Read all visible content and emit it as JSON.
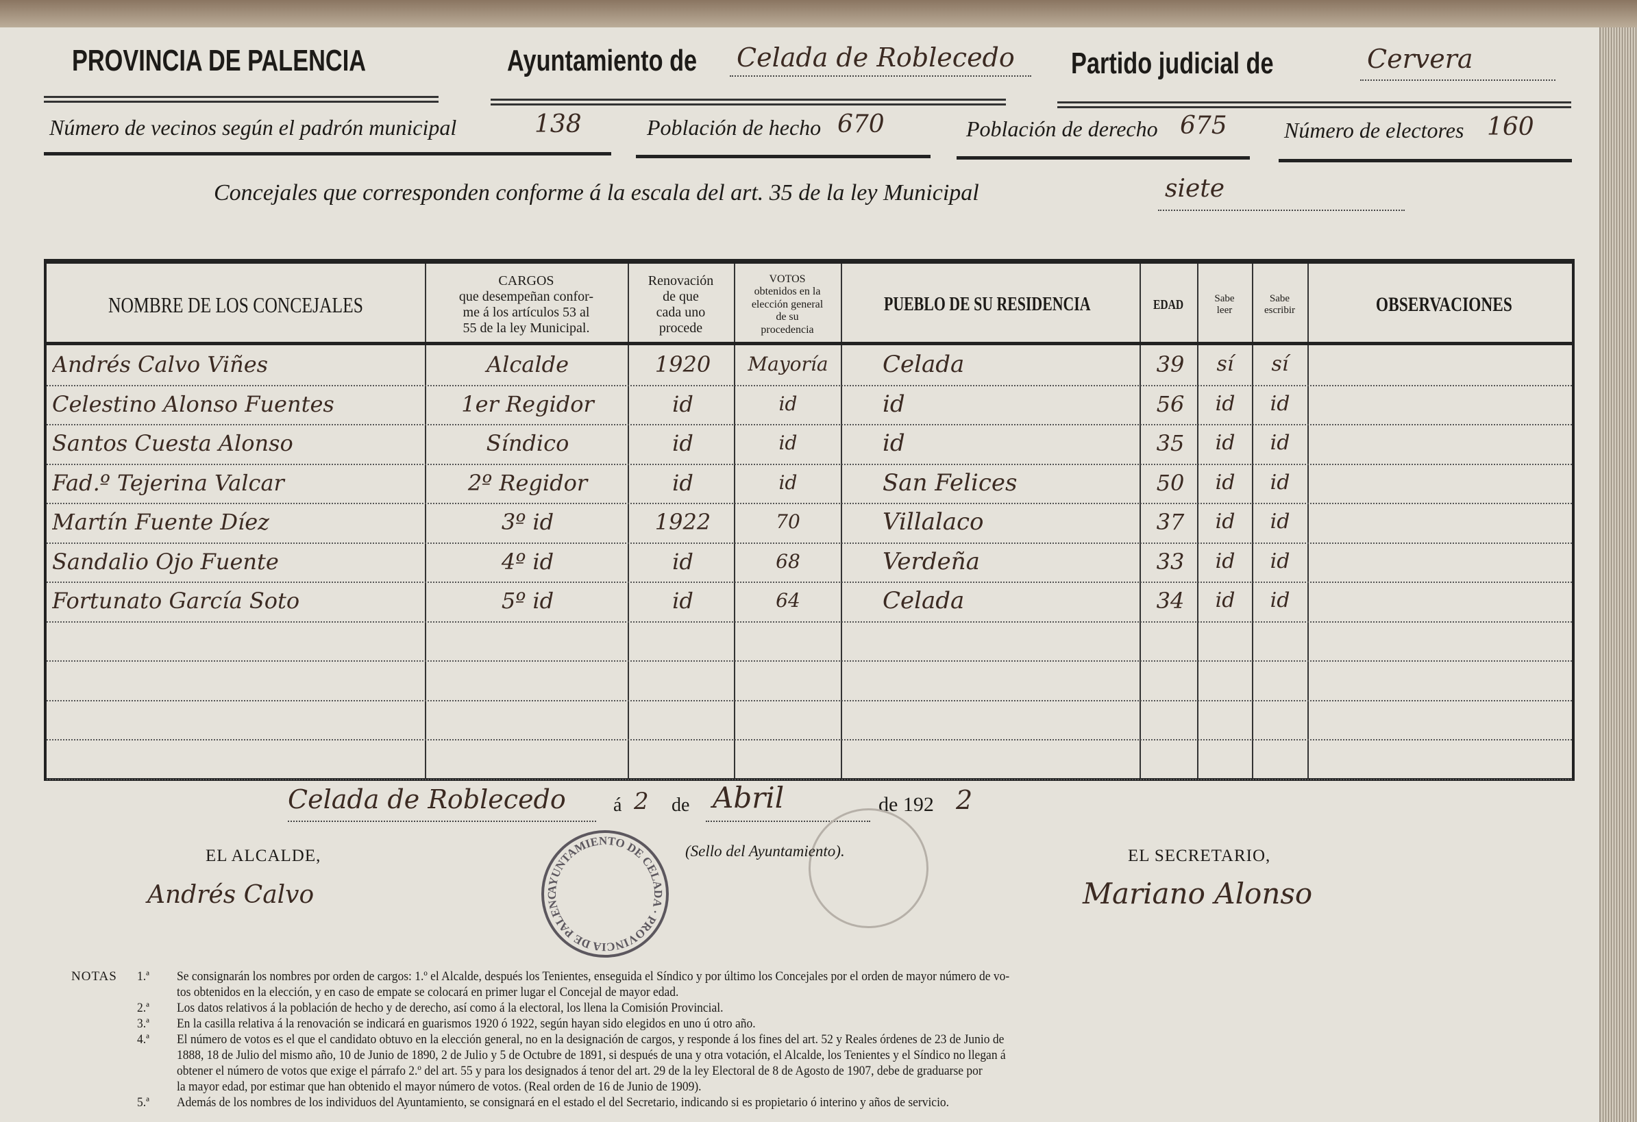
{
  "header": {
    "province": "PROVINCIA DE PALENCIA",
    "ayuntamiento_label": "Ayuntamiento de",
    "ayuntamiento_value": "Celada de Roblecedo",
    "partido_label": "Partido judicial de",
    "partido_value": "Cervera"
  },
  "census": {
    "vecinos_label": "Número de vecinos según el padrón municipal",
    "vecinos_value": "138",
    "hecho_label": "Población de hecho",
    "hecho_value": "670",
    "derecho_label": "Población de derecho",
    "derecho_value": "675",
    "electores_label": "Número de electores",
    "electores_value": "160"
  },
  "concejales": {
    "label": "Concejales que corresponden conforme á la escala del art. 35 de la ley Municipal",
    "value": "siete"
  },
  "table": {
    "headers": {
      "nombre": "NOMBRE DE LOS CONCEJALES",
      "cargos": [
        "CARGOS",
        "que desempeñan confor-",
        "me á los artículos 53 al",
        "55 de la ley Municipal."
      ],
      "renovacion": [
        "Renovación",
        "de que",
        "cada uno",
        "procede"
      ],
      "votos": [
        "VOTOS",
        "obtenidos en la",
        "elección general",
        "de su",
        "procedencia"
      ],
      "pueblo": "PUEBLO DE SU RESIDENCIA",
      "edad": "EDAD",
      "leer": [
        "Sabe",
        "leer"
      ],
      "escribir": [
        "Sabe",
        "escribir"
      ],
      "observaciones": "OBSERVACIONES"
    },
    "rows": [
      {
        "nombre": "Andrés Calvo Viñes",
        "cargo": "Alcalde",
        "renovacion": "1920",
        "votos": "Mayoría",
        "pueblo": "Celada",
        "edad": "39",
        "leer": "sí",
        "escribir": "sí"
      },
      {
        "nombre": "Celestino Alonso Fuentes",
        "cargo": "1er Regidor",
        "renovacion": "id",
        "votos": "id",
        "pueblo": "id",
        "edad": "56",
        "leer": "id",
        "escribir": "id"
      },
      {
        "nombre": "Santos Cuesta Alonso",
        "cargo": "Síndico",
        "renovacion": "id",
        "votos": "id",
        "pueblo": "id",
        "edad": "35",
        "leer": "id",
        "escribir": "id"
      },
      {
        "nombre": "Fad.º Tejerina Valcar",
        "cargo": "2º Regidor",
        "renovacion": "id",
        "votos": "id",
        "pueblo": "San Felices",
        "edad": "50",
        "leer": "id",
        "escribir": "id"
      },
      {
        "nombre": "Martín Fuente Díez",
        "cargo": "3º id",
        "renovacion": "1922",
        "votos": "70",
        "pueblo": "Villalaco",
        "edad": "37",
        "leer": "id",
        "escribir": "id"
      },
      {
        "nombre": "Sandalio Ojo Fuente",
        "cargo": "4º id",
        "renovacion": "id",
        "votos": "68",
        "pueblo": "Verdeña",
        "edad": "33",
        "leer": "id",
        "escribir": "id"
      },
      {
        "nombre": "Fortunato García Soto",
        "cargo": "5º id",
        "renovacion": "id",
        "votos": "64",
        "pueblo": "Celada",
        "edad": "34",
        "leer": "id",
        "escribir": "id"
      }
    ]
  },
  "date": {
    "place": "Celada de Roblecedo",
    "a": "á",
    "day": "2",
    "de1": "de",
    "month": "Abril",
    "de2": "de 192",
    "year_digit": "2"
  },
  "seal_label": "(Sello del Ayuntamiento).",
  "seal_text": "AYUNTAMIENTO DE CELADA · PROVINCIA DE PALENCIA",
  "alcalde": {
    "label": "EL ALCALDE,",
    "signature": "Andrés Calvo"
  },
  "secretario": {
    "label": "EL SECRETARIO,",
    "signature": "Mariano Alonso"
  },
  "notes": {
    "label": "NOTAS",
    "items": [
      [
        "1.ª",
        "Se consignarán los nombres por orden de cargos: 1.º el Alcalde, después los Tenientes, enseguida el Síndico y por último los Concejales por el orden de mayor número de vo-",
        "tos obtenidos en la elección, y en caso de empate se colocará en primer lugar el Concejal de mayor edad."
      ],
      [
        "2.ª",
        "Los datos relativos á la población de hecho y de derecho, así como á la electoral, los llena la Comisión Provincial."
      ],
      [
        "3.ª",
        "En la casilla relativa á la renovación se indicará en guarismos 1920 ó 1922, según hayan sido elegidos en uno ú otro año."
      ],
      [
        "4.ª",
        "El número de votos es el que el candidato obtuvo en la elección general, no en la designación de cargos, y responde á los fines del art. 52 y Reales órdenes de 23 de Junio de",
        "1888, 18 de Julio del mismo año, 10 de Junio de 1890, 2 de Julio y 5 de Octubre de 1891, si después de una y otra votación, el Alcalde, los Tenientes y el Síndico no llegan á",
        "obtener el número de votos que exige el párrafo 2.º del art. 55 y para los designados á tenor del art. 29 de la ley Electoral de 8 de Agosto de 1907, debe de graduarse por",
        "la mayor edad, por estimar que han obtenido el mayor número de votos. (Real orden de 16 de Junio de 1909)."
      ],
      [
        "5.ª",
        "Además de los nombres de los individuos del Ayuntamiento, se consignará en el estado el del Secretario, indicando si es propietario ó interino y años de servicio."
      ]
    ]
  }
}
